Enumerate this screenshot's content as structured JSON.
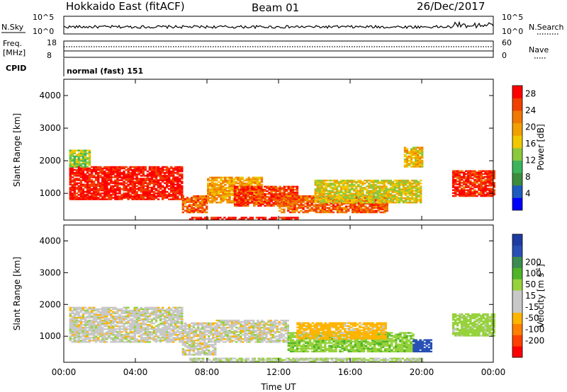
{
  "header": {
    "station": "Hokkaido East (fitACF)",
    "beam": "Beam 01",
    "date": "26/Dec/2017"
  },
  "noise_panel": {
    "left_label": "N.Sky",
    "right_label": "N.Search",
    "left_ticks": [
      "10^5",
      "10^0"
    ],
    "right_ticks": [
      "10^5",
      "10^0"
    ]
  },
  "freq_panel": {
    "left_label_line1": "Freq.",
    "left_label_line2": "[MHz]",
    "right_label": "Nave",
    "left_ticks": [
      "18",
      "8"
    ],
    "right_ticks": [
      "60",
      "0"
    ]
  },
  "cpid_panel": {
    "label": "CPID",
    "value": "normal (fast) 151"
  },
  "colors": {
    "power_scale": [
      "#0000ff",
      "#1e5bbe",
      "#3c8c3c",
      "#3cb45a",
      "#8cc83c",
      "#f0c800",
      "#f0a000",
      "#f07800",
      "#f04000",
      "#ff0000"
    ],
    "velocity_scale": [
      "#ff0000",
      "#ff4000",
      "#ff8000",
      "#ffb400",
      "#c8c8c8",
      "#c8c8c8",
      "#96d23c",
      "#50b428",
      "#3c8c50",
      "#2850b4",
      "#1e3ca0"
    ]
  },
  "chart_data": [
    {
      "type": "heatmap",
      "name": "power",
      "ylabel": "Slant Range [km]",
      "y_ticks": [
        "1000",
        "2000",
        "3000",
        "4000"
      ],
      "ylim": [
        180,
        4500
      ],
      "x_ticks": [
        "00:00",
        "04:00",
        "08:00",
        "12:00",
        "16:00",
        "20:00",
        "00:00"
      ],
      "xlim_hours": [
        0,
        24
      ],
      "colorbar_label": "Power [dB]",
      "colorbar_ticks": [
        "4",
        "8",
        "12",
        "16",
        "20",
        "24",
        "28"
      ],
      "zlim": [
        0,
        30
      ],
      "regions": [
        {
          "t0": 0.3,
          "t1": 6.6,
          "r0": 800,
          "r1": 1800,
          "value": 28
        },
        {
          "t0": 6.6,
          "t1": 8.0,
          "r0": 400,
          "r1": 900,
          "value": 24
        },
        {
          "t0": 8.0,
          "t1": 11.0,
          "r0": 700,
          "r1": 1500,
          "value": 20
        },
        {
          "t0": 9.5,
          "t1": 13.0,
          "r0": 600,
          "r1": 1200,
          "value": 26
        },
        {
          "t0": 12.0,
          "t1": 18.0,
          "r0": 400,
          "r1": 900,
          "value": 24
        },
        {
          "t0": 14.0,
          "t1": 20.0,
          "r0": 700,
          "r1": 1400,
          "value": 16
        },
        {
          "t0": 7.0,
          "t1": 13.0,
          "r0": 190,
          "r1": 280,
          "value": 28
        },
        {
          "t0": 21.7,
          "t1": 24.0,
          "r0": 900,
          "r1": 1700,
          "value": 27
        },
        {
          "t0": 0.3,
          "t1": 1.5,
          "r0": 1800,
          "r1": 2300,
          "value": 14
        },
        {
          "t0": 19.0,
          "t1": 20.0,
          "r0": 1800,
          "r1": 2400,
          "value": 18
        }
      ]
    },
    {
      "type": "heatmap",
      "name": "velocity",
      "ylabel": "Slant Range [km]",
      "y_ticks": [
        "1000",
        "2000",
        "3000",
        "4000"
      ],
      "ylim": [
        180,
        4500
      ],
      "x_ticks": [
        "00:00",
        "04:00",
        "08:00",
        "12:00",
        "16:00",
        "20:00",
        "00:00"
      ],
      "xlim_hours": [
        0,
        24
      ],
      "xlabel": "Time UT",
      "colorbar_label": "Velocity [m s^-1]",
      "colorbar_ticks": [
        "-200",
        "-100",
        "-50",
        "-15",
        "15",
        "50",
        "100",
        "200"
      ],
      "regions": [
        {
          "t0": 0.3,
          "t1": 6.6,
          "r0": 800,
          "r1": 1900,
          "value": 0
        },
        {
          "t0": 6.6,
          "t1": 8.5,
          "r0": 400,
          "r1": 1400,
          "value": 0
        },
        {
          "t0": 8.5,
          "t1": 12.5,
          "r0": 800,
          "r1": 1500,
          "value": 0
        },
        {
          "t0": 12.5,
          "t1": 19.5,
          "r0": 500,
          "r1": 1100,
          "value": 40
        },
        {
          "t0": 13.0,
          "t1": 18.0,
          "r0": 900,
          "r1": 1400,
          "value": -30
        },
        {
          "t0": 19.5,
          "t1": 20.5,
          "r0": 500,
          "r1": 900,
          "value": 180
        },
        {
          "t0": 7.0,
          "t1": 20.0,
          "r0": 190,
          "r1": 300,
          "value": 15
        },
        {
          "t0": 21.7,
          "t1": 24.0,
          "r0": 1000,
          "r1": 1700,
          "value": 30
        }
      ]
    }
  ]
}
